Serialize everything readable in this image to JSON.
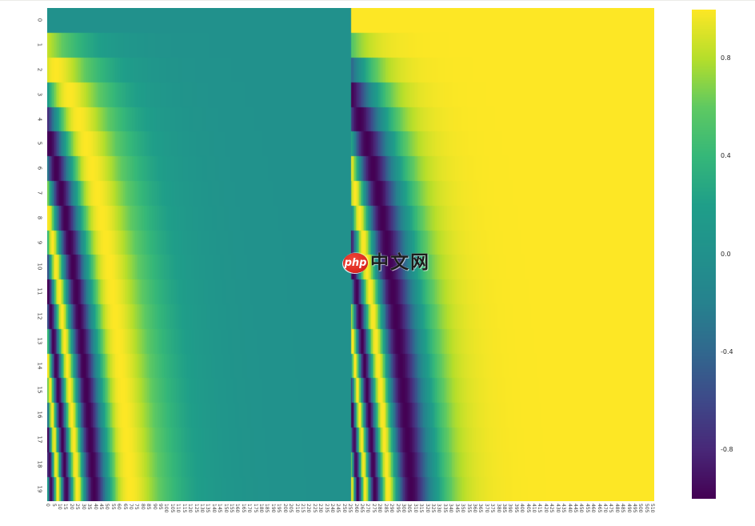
{
  "figure": {
    "background": "#ffffff",
    "tick_color": "#3d3d3d"
  },
  "chart_data": {
    "type": "heatmap",
    "title": "",
    "description": "Transformer sinusoidal positional encoding matrix. Rows = token position 0-19 (y axis), columns = embedding dimension 0-511 (x axis). Left half (dims 0-255) = sin(pos / 10000^(i/256)); right half (dims 256-511) = cos(pos / 10000^((i-256)/256)). Row 0 is 0 (teal) on the left half and 1 (yellow) on the right half.",
    "n_rows": 20,
    "n_cols": 512,
    "base": 10000,
    "split_col": 256,
    "left_half_fn": "sin",
    "right_half_fn": "cos",
    "vmin": -1,
    "vmax": 1,
    "grid": false,
    "y_tick_labels": [
      0,
      1,
      2,
      3,
      4,
      5,
      6,
      7,
      8,
      9,
      10,
      11,
      12,
      13,
      14,
      15,
      16,
      17,
      18,
      19
    ],
    "x_tick_labels": [
      0,
      5,
      10,
      15,
      20,
      25,
      30,
      35,
      40,
      45,
      50,
      55,
      60,
      65,
      70,
      75,
      80,
      85,
      90,
      95,
      100,
      105,
      110,
      115,
      120,
      125,
      130,
      135,
      140,
      145,
      150,
      155,
      160,
      165,
      170,
      175,
      180,
      185,
      190,
      195,
      200,
      205,
      210,
      215,
      220,
      225,
      230,
      235,
      240,
      245,
      250,
      255,
      260,
      265,
      270,
      275,
      280,
      285,
      290,
      295,
      300,
      305,
      310,
      315,
      320,
      325,
      330,
      335,
      340,
      345,
      350,
      355,
      360,
      365,
      370,
      375,
      380,
      385,
      390,
      395,
      400,
      405,
      410,
      415,
      420,
      425,
      430,
      435,
      440,
      445,
      450,
      455,
      460,
      465,
      470,
      475,
      480,
      485,
      490,
      495,
      500,
      505,
      510
    ],
    "colormap": {
      "name": "viridis",
      "stops": [
        [
          0.0,
          "#440154"
        ],
        [
          0.1,
          "#482878"
        ],
        [
          0.2,
          "#3e4989"
        ],
        [
          0.3,
          "#31688e"
        ],
        [
          0.4,
          "#26828e"
        ],
        [
          0.5,
          "#21918c"
        ],
        [
          0.6,
          "#1f9e89"
        ],
        [
          0.7,
          "#35b779"
        ],
        [
          0.8,
          "#5ec962"
        ],
        [
          0.9,
          "#b5de2b"
        ],
        [
          1.0,
          "#fde725"
        ]
      ]
    },
    "colorbar": {
      "position": "right",
      "tick_labels": [
        "0.8",
        "0.4",
        "0.0",
        "-0.4",
        "-0.8"
      ],
      "tick_values": [
        0.8,
        0.4,
        0.0,
        -0.4,
        -0.8
      ]
    },
    "legend": null
  },
  "watermark": {
    "badge": "php",
    "text": "中文网",
    "badge_color": "#df2b22",
    "text_color": "#1c1c1c"
  }
}
